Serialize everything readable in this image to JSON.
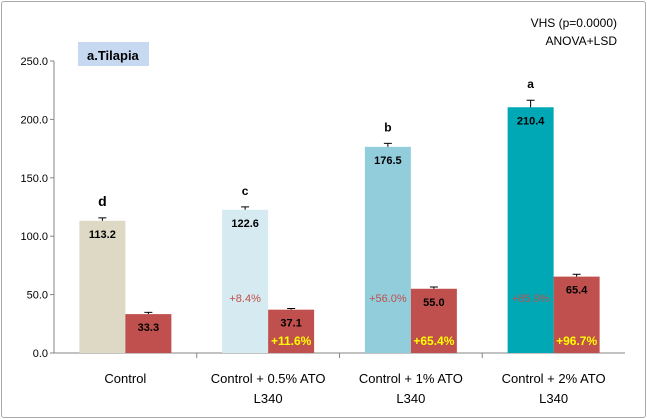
{
  "chart_data": {
    "type": "bar",
    "title": "a.Tilapia",
    "annotation_lines": [
      "VHS (p=0.0000)",
      "ANOVA+LSD"
    ],
    "xlabel": "",
    "ylabel": "",
    "ylim": [
      0,
      250
    ],
    "yticks": [
      "0.0",
      "50.0",
      "100.0",
      "150.0",
      "200.0",
      "250.0"
    ],
    "grid": false,
    "legend": "none",
    "categories": [
      [
        "Control"
      ],
      [
        "Control + 0.5% ATO",
        "L340"
      ],
      [
        "Control + 1% ATO",
        "L340"
      ],
      [
        "Control + 2% ATO",
        "L340"
      ]
    ],
    "series": [
      {
        "values": [
          113.2,
          122.6,
          176.5,
          210.4
        ],
        "value_labels": [
          "113.2",
          "122.6",
          "176.5",
          "210.4"
        ],
        "errors": [
          2.5,
          2.5,
          3.0,
          6.0
        ],
        "significance": [
          "d",
          "c",
          "b",
          "a"
        ],
        "percent_labels": [
          "",
          "+8.4%",
          "+56.0%",
          "+85.9%"
        ],
        "colors": [
          "#ddd9c4",
          "#d6eaf1",
          "#92cddc",
          "#00a8b5"
        ]
      },
      {
        "values": [
          33.3,
          37.1,
          55.0,
          65.4
        ],
        "value_labels": [
          "33.3",
          "37.1",
          "55.0",
          "65.4"
        ],
        "errors": [
          1.5,
          1.0,
          1.5,
          2.0
        ],
        "percent_labels": [
          "",
          "+11.6%",
          "+65.4%",
          "+96.7%"
        ],
        "colors": [
          "#c0504d",
          "#c0504d",
          "#c0504d",
          "#c0504d"
        ]
      }
    ]
  }
}
